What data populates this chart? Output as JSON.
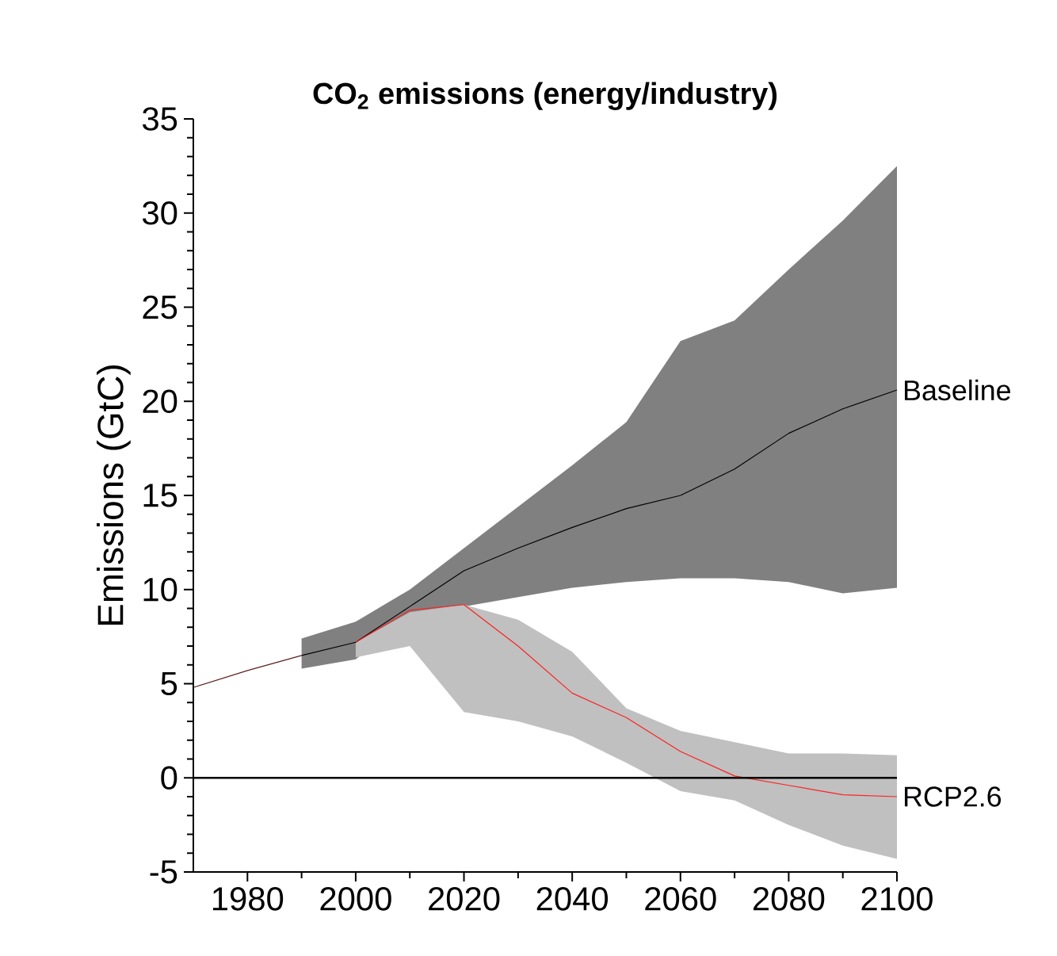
{
  "chart_data": {
    "type": "line",
    "title": "CO$_{2}$ emissions (energy/industry)",
    "ylabel": "Emissions (GtC)",
    "xlim": [
      1970,
      2100
    ],
    "xticks": [
      1980,
      2000,
      2020,
      2040,
      2060,
      2080,
      2100
    ],
    "ylim": [
      -5,
      35
    ],
    "yticks": [
      -5,
      0,
      5,
      10,
      15,
      20,
      25,
      30,
      35
    ],
    "grid": false,
    "marker": "none",
    "line_style": "solid",
    "ref_lines": [
      {
        "axis": "y",
        "value": 0,
        "color": "#000000"
      }
    ],
    "series": [
      {
        "color": "#5a2020",
        "x": [
          1970,
          1980,
          1990
        ],
        "values": [
          4.8,
          5.7,
          6.5
        ]
      },
      {
        "name": "Baseline",
        "color": "#000000",
        "x": [
          1990,
          2000,
          2010,
          2020,
          2030,
          2040,
          2050,
          2060,
          2070,
          2080,
          2090,
          2100
        ],
        "values": [
          6.5,
          7.2,
          9.1,
          11.0,
          12.2,
          13.3,
          14.3,
          15.0,
          16.4,
          18.3,
          19.6,
          20.6
        ],
        "lower": [
          5.8,
          6.3,
          8.6,
          9.1,
          9.6,
          10.1,
          10.4,
          10.6,
          10.6,
          10.4,
          9.8,
          10.1
        ],
        "upper": [
          7.4,
          8.3,
          10.0,
          12.2,
          14.4,
          16.6,
          18.9,
          23.2,
          24.3,
          27.0,
          29.6,
          32.5
        ]
      },
      {
        "name": "RCP2.6",
        "color": "#ff2020",
        "x": [
          2000,
          2010,
          2020,
          2030,
          2040,
          2050,
          2060,
          2070,
          2080,
          2090,
          2100
        ],
        "values": [
          7.2,
          8.9,
          9.2,
          7.0,
          4.5,
          3.2,
          1.4,
          0.1,
          -0.4,
          -0.9,
          -1.0
        ],
        "lower": [
          6.4,
          7.0,
          3.5,
          3.0,
          2.2,
          0.8,
          -0.7,
          -1.2,
          -2.5,
          -3.6,
          -4.3
        ],
        "upper": [
          7.2,
          8.8,
          9.2,
          8.4,
          6.7,
          3.7,
          2.5,
          1.9,
          1.3,
          1.3,
          1.2
        ]
      }
    ]
  }
}
